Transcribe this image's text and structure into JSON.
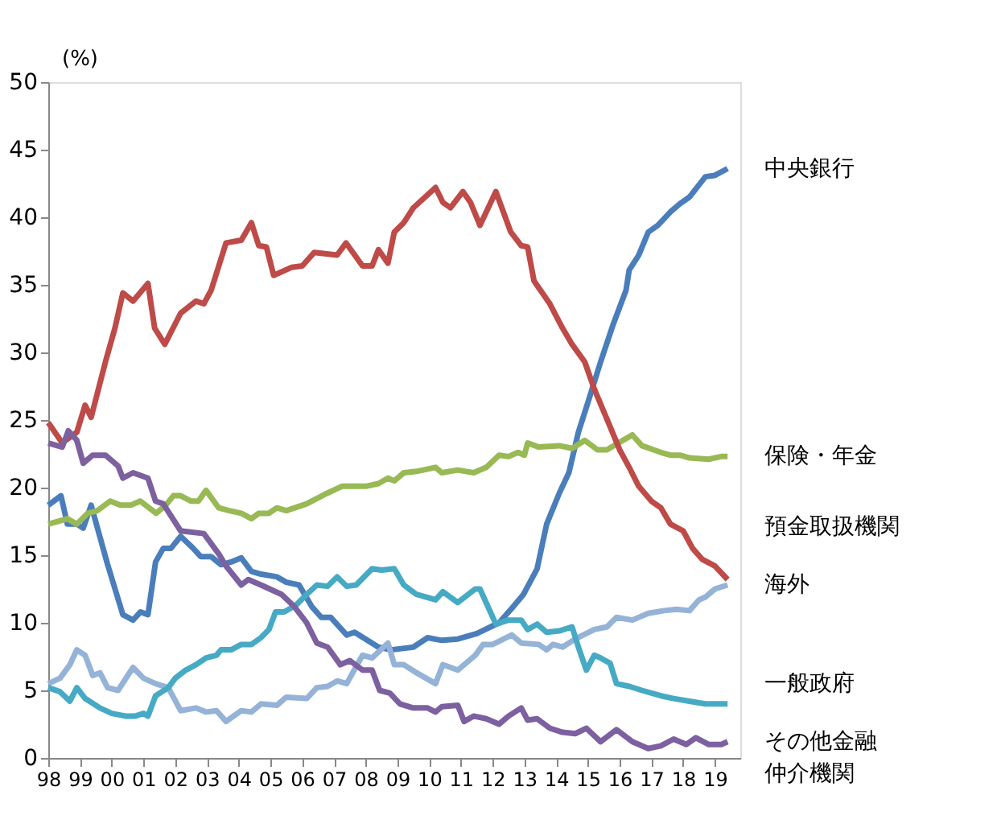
{
  "chart_data": {
    "type": "line",
    "ylabel": "(%)",
    "xlim": [
      1998,
      2019.8
    ],
    "ylim": [
      0,
      50
    ],
    "yticks": [
      0,
      5,
      10,
      15,
      20,
      25,
      30,
      35,
      40,
      45,
      50
    ],
    "xticks": [
      {
        "value": 1998,
        "label": "98"
      },
      {
        "value": 1999,
        "label": "99"
      },
      {
        "value": 2000,
        "label": "00"
      },
      {
        "value": 2001,
        "label": "01"
      },
      {
        "value": 2002,
        "label": "02"
      },
      {
        "value": 2003,
        "label": "03"
      },
      {
        "value": 2004,
        "label": "04"
      },
      {
        "value": 2005,
        "label": "05"
      },
      {
        "value": 2006,
        "label": "06"
      },
      {
        "value": 2007,
        "label": "07"
      },
      {
        "value": 2008,
        "label": "08"
      },
      {
        "value": 2009,
        "label": "09"
      },
      {
        "value": 2010,
        "label": "10"
      },
      {
        "value": 2011,
        "label": "11"
      },
      {
        "value": 2012,
        "label": "12"
      },
      {
        "value": 2013,
        "label": "13"
      },
      {
        "value": 2014,
        "label": "14"
      },
      {
        "value": 2015,
        "label": "15"
      },
      {
        "value": 2016,
        "label": "16"
      },
      {
        "value": 2017,
        "label": "17"
      },
      {
        "value": 2018,
        "label": "18"
      },
      {
        "value": 2019,
        "label": "19"
      }
    ],
    "grid": false,
    "legend": false,
    "marker": "none",
    "line_style": "solid",
    "series": [
      {
        "name": "中央銀行",
        "color": "#4a7ebb",
        "x": [
          1998,
          1998.4,
          1998.6,
          1998.9,
          1999.1,
          1999.35,
          1999.87,
          2000.35,
          2000.67,
          2000.9,
          2001.14,
          2001.38,
          2001.62,
          2001.86,
          2002.17,
          2002.57,
          2002.8,
          2003.13,
          2003.44,
          2003.76,
          2004.08,
          2004.4,
          2004.7,
          2005.2,
          2005.5,
          2005.9,
          2006.3,
          2006.6,
          2006.9,
          2007.4,
          2007.65,
          2008.4,
          2008.8,
          2009.5,
          2009.95,
          2010.4,
          2010.9,
          2011.5,
          2012.2,
          2012.65,
          2012.97,
          2013.4,
          2013.7,
          2014.1,
          2014.4,
          2014.7,
          2015,
          2015.4,
          2015.8,
          2016.2,
          2016.3,
          2016.6,
          2016.9,
          2017.2,
          2017.6,
          2017.9,
          2018.2,
          2018.7,
          2019,
          2019.4
        ],
        "values": [
          18.7,
          19.4,
          17.3,
          17.3,
          17,
          18.7,
          14.3,
          10.6,
          10.2,
          10.8,
          10.6,
          14.5,
          15.5,
          15.5,
          16.4,
          15.5,
          14.9,
          14.9,
          14.3,
          14.5,
          14.8,
          13.8,
          13.6,
          13.4,
          13,
          12.8,
          11.2,
          10.4,
          10.4,
          9.1,
          9.3,
          8.2,
          8,
          8.2,
          8.9,
          8.7,
          8.8,
          9.2,
          10,
          11.2,
          12.1,
          14,
          17.3,
          19.6,
          21.1,
          24.1,
          26.3,
          29.3,
          32.1,
          34.6,
          36.1,
          37.2,
          38.9,
          39.4,
          40.4,
          41,
          41.5,
          43,
          43.1,
          43.6
        ]
      },
      {
        "name": "保険・年金",
        "color": "#98b954",
        "x": [
          1998,
          1998.6,
          1998.9,
          1999.24,
          1999.55,
          1999.95,
          2000.27,
          2000.6,
          2000.9,
          2001.4,
          2001.7,
          2001.94,
          2002.17,
          2002.5,
          2002.73,
          2002.97,
          2003.37,
          2003.7,
          2004.08,
          2004.4,
          2004.63,
          2004.95,
          2005.2,
          2005.5,
          2006.14,
          2006.8,
          2007.25,
          2007.7,
          2008,
          2008.4,
          2008.7,
          2008.9,
          2009.2,
          2009.6,
          2010.2,
          2010.4,
          2010.9,
          2011.4,
          2011.8,
          2012.2,
          2012.5,
          2012.8,
          2013,
          2013.1,
          2013.45,
          2014.1,
          2014.5,
          2014.9,
          2015.3,
          2015.6,
          2015.96,
          2016.4,
          2016.7,
          2017.3,
          2017.6,
          2017.9,
          2018.2,
          2018.8,
          2019.2,
          2019.4
        ],
        "values": [
          17.3,
          17.7,
          17.3,
          18.1,
          18.3,
          19,
          18.7,
          18.7,
          19,
          18.1,
          18.7,
          19.4,
          19.4,
          19,
          19,
          19.8,
          18.5,
          18.3,
          18.1,
          17.7,
          18.1,
          18.1,
          18.5,
          18.3,
          18.8,
          19.6,
          20.1,
          20.1,
          20.1,
          20.3,
          20.7,
          20.5,
          21.1,
          21.2,
          21.5,
          21.1,
          21.3,
          21.1,
          21.5,
          22.4,
          22.3,
          22.6,
          22.4,
          23.3,
          23,
          23.1,
          22.9,
          23.5,
          22.8,
          22.8,
          23.3,
          23.9,
          23.1,
          22.6,
          22.4,
          22.4,
          22.2,
          22.1,
          22.3,
          22.3
        ]
      },
      {
        "name": "預金取扱機関",
        "color": "#be4b48",
        "x": [
          1998,
          1998.44,
          1998.9,
          1999.16,
          1999.35,
          1999.8,
          2000.1,
          2000.35,
          2000.67,
          2001.14,
          2001.35,
          2001.67,
          2002.17,
          2002.65,
          2002.9,
          2003.13,
          2003.6,
          2004.08,
          2004.4,
          2004.63,
          2004.87,
          2005.1,
          2005.67,
          2006,
          2006.38,
          2007.1,
          2007.38,
          2007.9,
          2008.2,
          2008.4,
          2008.7,
          2008.9,
          2009.2,
          2009.5,
          2010.2,
          2010.43,
          2010.67,
          2011.06,
          2011.3,
          2011.6,
          2012.1,
          2012.57,
          2012.9,
          2013.1,
          2013.3,
          2013.8,
          2014.2,
          2014.5,
          2014.9,
          2015.2,
          2015.7,
          2016,
          2016.3,
          2016.6,
          2017,
          2017.3,
          2017.6,
          2018,
          2018.3,
          2018.6,
          2019,
          2019.4
        ],
        "values": [
          24.8,
          23.3,
          24.1,
          26.1,
          25.2,
          29.3,
          31.8,
          34.4,
          33.8,
          35.1,
          31.8,
          30.6,
          32.9,
          33.8,
          33.6,
          34.6,
          38.1,
          38.3,
          39.6,
          37.9,
          37.8,
          35.7,
          36.3,
          36.4,
          37.4,
          37.2,
          38.1,
          36.4,
          36.4,
          37.6,
          36.6,
          38.9,
          39.6,
          40.7,
          42.2,
          41.1,
          40.7,
          41.9,
          41.1,
          39.4,
          41.9,
          38.9,
          37.9,
          37.8,
          35.3,
          33.6,
          31.8,
          30.6,
          29.3,
          27.3,
          24.5,
          22.8,
          21.5,
          20.1,
          19,
          18.5,
          17.3,
          16.8,
          15.5,
          14.7,
          14.2,
          13.2
        ]
      },
      {
        "name": "海外",
        "color": "#95b3d7",
        "x": [
          1998,
          1998.37,
          1998.68,
          1998.9,
          1999.16,
          1999.4,
          1999.63,
          1999.87,
          2000.2,
          2000.67,
          2001,
          2001.38,
          2001.78,
          2002.17,
          2002.65,
          2002.97,
          2003.3,
          2003.6,
          2004.08,
          2004.4,
          2004.7,
          2005.2,
          2005.5,
          2006.14,
          2006.46,
          2006.8,
          2007.1,
          2007.4,
          2007.9,
          2008.2,
          2008.7,
          2008.9,
          2009.2,
          2009.6,
          2010.2,
          2010.43,
          2010.9,
          2011.45,
          2011.7,
          2012,
          2012.6,
          2012.9,
          2013.45,
          2013.7,
          2013.9,
          2014.2,
          2014.6,
          2015.2,
          2015.6,
          2015.9,
          2016.4,
          2016.9,
          2017.4,
          2017.8,
          2018.2,
          2018.5,
          2018.7,
          2019,
          2019.4
        ],
        "values": [
          5.5,
          5.9,
          6.9,
          8,
          7.6,
          6.1,
          6.3,
          5.2,
          5,
          6.7,
          5.9,
          5.5,
          5.2,
          3.5,
          3.7,
          3.4,
          3.5,
          2.7,
          3.5,
          3.4,
          4,
          3.9,
          4.5,
          4.4,
          5.2,
          5.3,
          5.7,
          5.5,
          7.6,
          7.4,
          8.5,
          6.9,
          6.9,
          6.3,
          5.5,
          6.9,
          6.5,
          7.6,
          8.4,
          8.4,
          9.1,
          8.5,
          8.4,
          8,
          8.4,
          8.2,
          8.8,
          9.5,
          9.7,
          10.4,
          10.2,
          10.7,
          10.9,
          11,
          10.9,
          11.7,
          11.9,
          12.5,
          12.8
        ]
      },
      {
        "name": "一般政府",
        "color": "#46aac5",
        "x": [
          1998,
          1998.37,
          1998.68,
          1998.9,
          1999.16,
          1999.63,
          2000,
          2000.43,
          2000.75,
          2001,
          2001.14,
          2001.38,
          2001.78,
          2002,
          2002.33,
          2002.65,
          2002.97,
          2003.3,
          2003.44,
          2003.76,
          2004.08,
          2004.4,
          2004.7,
          2004.95,
          2005.16,
          2005.43,
          2005.8,
          2006.14,
          2006.46,
          2006.8,
          2007.1,
          2007.4,
          2007.7,
          2008.2,
          2008.5,
          2008.9,
          2009.2,
          2009.6,
          2010.2,
          2010.43,
          2010.9,
          2011.45,
          2011.6,
          2012.1,
          2012.5,
          2012.9,
          2013.1,
          2013.4,
          2013.7,
          2014.1,
          2014.5,
          2014.7,
          2014.95,
          2015.2,
          2015.4,
          2015.7,
          2015.9,
          2016.3,
          2016.7,
          2017.3,
          2017.7,
          2018.2,
          2018.7,
          2019.4
        ],
        "values": [
          5.2,
          4.9,
          4.2,
          5.2,
          4.4,
          3.7,
          3.3,
          3.1,
          3.1,
          3.3,
          3.1,
          4.6,
          5.2,
          5.9,
          6.5,
          6.9,
          7.4,
          7.6,
          8,
          8,
          8.4,
          8.4,
          8.9,
          9.5,
          10.8,
          10.8,
          11.3,
          12.1,
          12.8,
          12.7,
          13.4,
          12.7,
          12.8,
          14,
          13.9,
          14,
          12.8,
          12.1,
          11.7,
          12.3,
          11.5,
          12.5,
          12.5,
          9.9,
          10.2,
          10.2,
          9.5,
          9.9,
          9.3,
          9.4,
          9.7,
          8.2,
          6.5,
          7.6,
          7.4,
          7,
          5.5,
          5.3,
          5,
          4.6,
          4.4,
          4.2,
          4,
          4
        ]
      },
      {
        "name": "その他金融仲介機関",
        "color": "#7d60a0",
        "x": [
          1998,
          1998.44,
          1998.63,
          1998.9,
          1999.1,
          1999.4,
          1999.8,
          2000.2,
          2000.35,
          2000.67,
          2001.14,
          2001.38,
          2001.62,
          2002.17,
          2002.9,
          2003.37,
          2003.6,
          2004.08,
          2004.3,
          2004.7,
          2005.35,
          2005.75,
          2006.14,
          2006.46,
          2006.8,
          2007.2,
          2007.5,
          2007.9,
          2008.2,
          2008.44,
          2008.76,
          2009.08,
          2009.5,
          2009.95,
          2010.2,
          2010.4,
          2010.9,
          2011.1,
          2011.4,
          2011.8,
          2012.2,
          2012.5,
          2012.9,
          2013.1,
          2013.4,
          2013.8,
          2014.2,
          2014.6,
          2014.95,
          2015.4,
          2015.9,
          2016.4,
          2016.9,
          2017.3,
          2017.7,
          2018.1,
          2018.4,
          2018.8,
          2019.2,
          2019.4
        ],
        "values": [
          23.3,
          23,
          24.2,
          23.5,
          21.8,
          22.4,
          22.4,
          21.6,
          20.7,
          21.1,
          20.7,
          19,
          18.8,
          16.8,
          16.6,
          15.1,
          14.2,
          12.8,
          13.2,
          12.8,
          12.1,
          11.2,
          10,
          8.5,
          8.2,
          6.9,
          7.2,
          6.5,
          6.5,
          5,
          4.8,
          4,
          3.7,
          3.7,
          3.4,
          3.8,
          3.9,
          2.7,
          3.1,
          2.9,
          2.5,
          3.1,
          3.7,
          2.8,
          2.9,
          2.2,
          1.9,
          1.8,
          2.2,
          1.2,
          2.1,
          1.2,
          0.7,
          0.9,
          1.4,
          1,
          1.5,
          1,
          1,
          1.2
        ]
      }
    ]
  }
}
